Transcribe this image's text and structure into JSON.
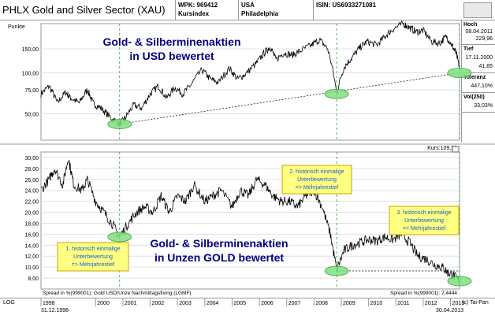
{
  "header": {
    "title": "PHLX Gold and Silver Sector (XAU)",
    "wpk": "WPK: 969412",
    "type": "Kursindex",
    "country": "USA",
    "exchange": "Philadelphia",
    "isin": "ISIN: US6933271081"
  },
  "side_panel": {
    "hoch_label": "Hoch",
    "hoch_date": "08.04.2011",
    "hoch_value": "229,96",
    "tief_label": "Tief",
    "tief_date": "17.11.2000",
    "tief_value": "41,85",
    "toleranz_label": "Toleranz",
    "toleranz_value": "447,10%",
    "vol_label": "Vol(250)",
    "vol_value": "33,03%"
  },
  "footer": {
    "log": "LOG",
    "start_date": "31.12.1998",
    "end_date": "30.04.2013",
    "copyright": "(c) Tai-Pan"
  },
  "colors": {
    "price_line": "#000000",
    "marker_green": "#7fe07f",
    "marker_green_stroke": "#3aa83a",
    "vline_green": "#2e9a2e",
    "note_bg": "#ffff80",
    "note_border": "#c9a400",
    "note_text": "#1a5fd0",
    "headline": "#000080",
    "grid": "#e0e0e0"
  },
  "chart_data": [
    {
      "type": "line",
      "title": "Gold- & Silberminenaktien in USD bewertet",
      "ylabel": "Punkte",
      "scale": "log",
      "ylim": [
        32,
        230
      ],
      "y_ticks": [
        50,
        75,
        100,
        150
      ],
      "y_tick_labels": [
        "50,00",
        "75,00",
        "100,00",
        "150,00"
      ],
      "x_range": [
        1998.0,
        2013.33
      ],
      "x_ticks": [
        1998,
        2000,
        2001,
        2002,
        2003,
        2004,
        2005,
        2006,
        2007,
        2008,
        2009,
        2010,
        2011,
        2012,
        2013
      ],
      "last_label": "Kurs:109,38",
      "series": [
        {
          "x": [
            1998.0,
            1998.3,
            1998.6,
            1998.9,
            1999.1,
            1999.4,
            1999.7,
            1999.9,
            2000.2,
            2000.5,
            2000.88,
            2001.1,
            2001.4,
            2001.7,
            2002.0,
            2002.3,
            2002.6,
            2002.9,
            2003.2,
            2003.5,
            2003.9,
            2004.2,
            2004.5,
            2004.9,
            2005.2,
            2005.5,
            2005.9,
            2006.2,
            2006.4,
            2006.6,
            2006.9,
            2007.2,
            2007.5,
            2007.9,
            2008.2,
            2008.5,
            2008.83,
            2009.1,
            2009.4,
            2009.7,
            2009.95,
            2010.3,
            2010.6,
            2010.9,
            2011.27,
            2011.5,
            2011.75,
            2012.0,
            2012.3,
            2012.6,
            2012.85,
            2013.05,
            2013.2,
            2013.33
          ],
          "y": [
            70,
            80,
            60,
            72,
            65,
            60,
            75,
            60,
            55,
            48,
            42,
            47,
            58,
            55,
            70,
            80,
            65,
            78,
            70,
            82,
            105,
            90,
            85,
            108,
            90,
            98,
            118,
            142,
            155,
            125,
            140,
            135,
            145,
            160,
            175,
            150,
            70,
            110,
            130,
            155,
            170,
            160,
            185,
            210,
            229.96,
            215,
            200,
            205,
            170,
            165,
            185,
            160,
            140,
            109.38
          ]
        }
      ],
      "annotation_points": [
        {
          "x": 2000.88,
          "y": 42
        },
        {
          "x": 2008.83,
          "y": 70
        },
        {
          "x": 2013.33,
          "y": 100
        }
      ],
      "trendline": {
        "x": [
          2000.88,
          2013.33
        ],
        "y": [
          42,
          100
        ]
      }
    },
    {
      "type": "line",
      "title": "Gold- & Silberminenaktien in Unzen GOLD bewertet",
      "scale": "linear",
      "ylim": [
        6,
        31
      ],
      "y_ticks": [
        8,
        10,
        12,
        14,
        16,
        18,
        20,
        22,
        24,
        26,
        28,
        30
      ],
      "y_tick_labels": [
        "8,00",
        "10,00",
        "12,00",
        "14,00",
        "16,00",
        "18,00",
        "20,00",
        "22,00",
        "24,00",
        "26,00",
        "28,00",
        "30,00"
      ],
      "x_range": [
        1998.0,
        2013.33
      ],
      "legend": "Spread in %(999001): Gold USD/Unze Nachmittagsfixing (LGMF)",
      "last_label": "Spread in %(999001): 7,4444",
      "series": [
        {
          "x": [
            1998.0,
            1998.3,
            1998.5,
            1998.8,
            1999.0,
            1999.2,
            1999.5,
            1999.7,
            2000.0,
            2000.3,
            2000.6,
            2000.88,
            2001.2,
            2001.5,
            2001.8,
            2002.1,
            2002.4,
            2002.7,
            2003.0,
            2003.3,
            2003.6,
            2004.0,
            2004.3,
            2004.6,
            2005.0,
            2005.3,
            2005.6,
            2005.9,
            2006.2,
            2006.5,
            2006.8,
            2007.1,
            2007.4,
            2007.7,
            2008.0,
            2008.3,
            2008.6,
            2008.83,
            2009.1,
            2009.4,
            2009.7,
            2010.0,
            2010.3,
            2010.6,
            2010.9,
            2011.2,
            2011.5,
            2011.8,
            2012.1,
            2012.4,
            2012.7,
            2012.9,
            2013.1,
            2013.33
          ],
          "y": [
            24,
            26,
            28,
            25,
            30,
            25,
            24,
            26,
            22,
            20,
            18,
            15.5,
            18,
            20,
            21,
            20,
            23,
            20,
            23,
            22,
            25,
            22,
            23,
            24,
            21,
            24,
            23,
            26,
            25,
            23,
            22,
            22,
            21,
            23,
            24,
            21,
            16,
            9.5,
            13,
            14,
            14.5,
            15,
            14.8,
            15.5,
            15,
            16,
            14.5,
            12,
            11.5,
            10.5,
            10,
            9,
            8.5,
            7.44
          ]
        }
      ],
      "annotation_points": [
        {
          "x": 2000.88,
          "y": 15.5
        },
        {
          "x": 2008.83,
          "y": 9.3
        },
        {
          "x": 2013.33,
          "y": 7.44
        }
      ],
      "reference_line": {
        "x": [
          2008.83,
          2013.33
        ],
        "y": 9.3
      },
      "notes": [
        {
          "lines": [
            "1. historisch einmalige",
            "Unterbewertung",
            "=> Mehrjahrestief"
          ]
        },
        {
          "lines": [
            "2. historisch einmalige",
            "Unterbewertung",
            "=> Mehrjahrestief"
          ]
        },
        {
          "lines": [
            "3. historisch einmalige",
            "Unterbewertung",
            "=> Mehrjahrestief"
          ]
        }
      ]
    }
  ]
}
